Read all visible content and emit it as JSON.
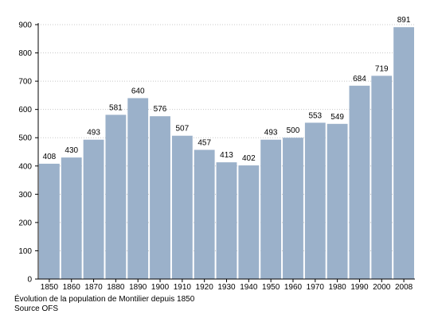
{
  "chart_data": {
    "type": "bar",
    "categories": [
      "1850",
      "1860",
      "1870",
      "1880",
      "1890",
      "1900",
      "1910",
      "1920",
      "1930",
      "1940",
      "1950",
      "1960",
      "1970",
      "1980",
      "1990",
      "2000",
      "2008"
    ],
    "values": [
      408,
      430,
      493,
      581,
      640,
      576,
      507,
      457,
      413,
      402,
      493,
      500,
      553,
      549,
      684,
      719,
      891
    ],
    "ylim": [
      0,
      900
    ],
    "yticks": [
      0,
      100,
      200,
      300,
      400,
      500,
      600,
      700,
      800,
      900
    ],
    "grid": true,
    "colors": {
      "bar": "#9bb1ca",
      "grid": "#c8c8c8"
    }
  },
  "caption": {
    "line1": "Évolution de la population de Montilier depuis 1850",
    "line2": "Source OFS"
  }
}
